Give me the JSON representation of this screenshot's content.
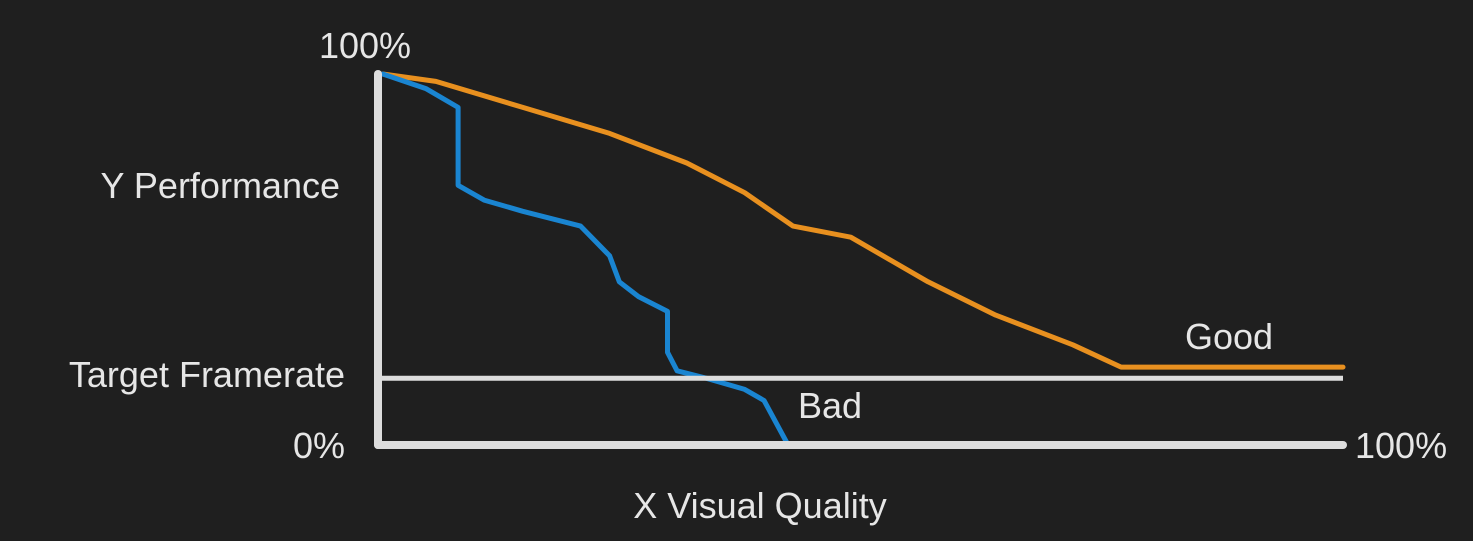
{
  "chart_data": {
    "type": "line",
    "xlabel": "X Visual Quality",
    "ylabel": "Y Performance",
    "xlim": [
      0,
      100
    ],
    "ylim": [
      0,
      100
    ],
    "x_tick_labels": {
      "max": "100%"
    },
    "y_tick_labels": {
      "min": "0%",
      "max": "100%"
    },
    "target": {
      "label": "Target Framerate",
      "y": 18
    },
    "series": [
      {
        "name": "Good",
        "color": "#e8901f",
        "points": [
          [
            0.5,
            100
          ],
          [
            6,
            98
          ],
          [
            15,
            91
          ],
          [
            24,
            84
          ],
          [
            32,
            76
          ],
          [
            38,
            68
          ],
          [
            43,
            59
          ],
          [
            49,
            56
          ],
          [
            57,
            44
          ],
          [
            64,
            35
          ],
          [
            72,
            27
          ],
          [
            77,
            21
          ],
          [
            80,
            21
          ],
          [
            90,
            21
          ],
          [
            100,
            21
          ]
        ]
      },
      {
        "name": "Bad",
        "color": "#1a85d1",
        "points": [
          [
            0.5,
            100
          ],
          [
            5,
            96
          ],
          [
            8.3,
            91
          ],
          [
            8.3,
            70
          ],
          [
            11,
            66
          ],
          [
            15,
            63
          ],
          [
            18,
            61
          ],
          [
            21,
            59
          ],
          [
            24,
            51
          ],
          [
            25,
            44
          ],
          [
            27,
            40
          ],
          [
            30,
            36
          ],
          [
            30,
            25
          ],
          [
            31,
            20
          ],
          [
            34,
            18
          ],
          [
            38,
            15
          ],
          [
            40,
            12
          ],
          [
            42.5,
            0
          ]
        ]
      }
    ],
    "grid": false,
    "legend": "inline"
  }
}
